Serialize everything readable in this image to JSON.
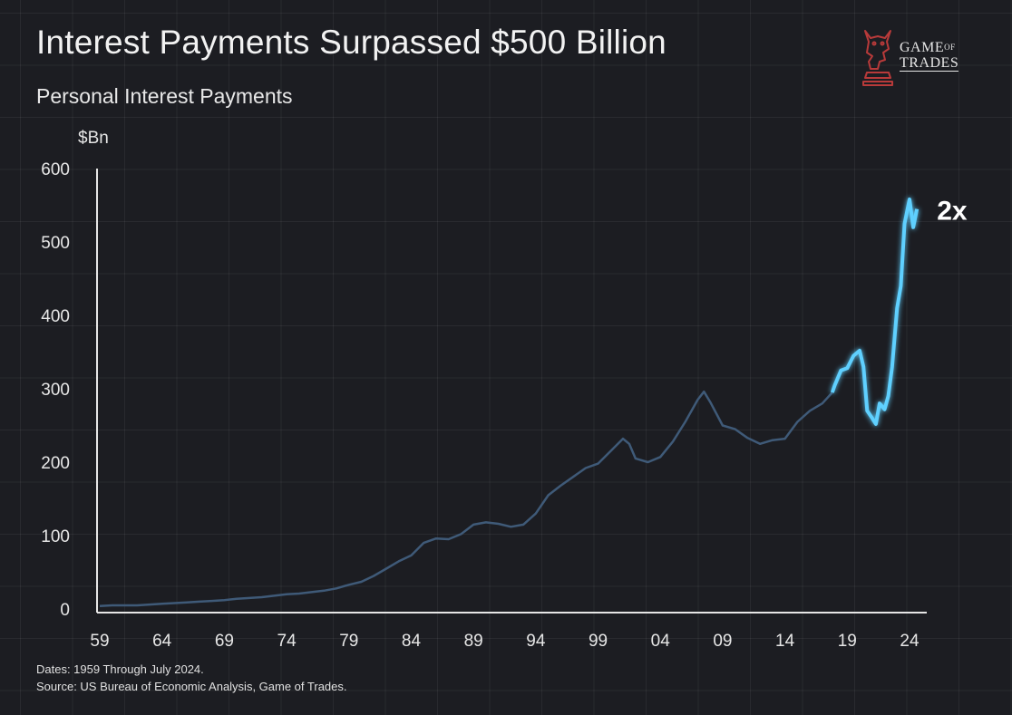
{
  "header": {
    "title": "Interest Payments Surpassed $500 Billion",
    "subtitle": "Personal Interest Payments"
  },
  "logo": {
    "line1": "GAME",
    "line1_small": "OF",
    "line2": "TRADES",
    "icon": "chess-knight-bull-icon"
  },
  "footer": {
    "dates": "Dates: 1959 Through July 2024.",
    "source": "Source: US Bureau of Economic Analysis, Game of Trades."
  },
  "colors": {
    "background": "#1c1d22",
    "line_early": "#3f5a78",
    "line_recent": "#5fd0ff",
    "logo_red": "#b83a3a"
  },
  "chart_data": {
    "type": "line",
    "title": "Personal Interest Payments",
    "ylabel": "$Bn",
    "xlabel": "",
    "xlim": [
      1959,
      2024.6
    ],
    "ylim": [
      0,
      600
    ],
    "grid": true,
    "x_tick_labels": [
      "59",
      "64",
      "69",
      "74",
      "79",
      "84",
      "89",
      "94",
      "99",
      "04",
      "09",
      "14",
      "19",
      "24"
    ],
    "x_tick_values": [
      1959,
      1964,
      1969,
      1974,
      1979,
      1984,
      1989,
      1994,
      1999,
      2004,
      2009,
      2014,
      2019,
      2024
    ],
    "y_ticks": [
      0,
      100,
      200,
      300,
      400,
      500,
      600
    ],
    "highlight_from": 2017.8,
    "annotation": {
      "text": "2x",
      "x": 2024.6,
      "y": 545
    },
    "series": [
      {
        "x": [
          1959,
          1960,
          1961,
          1962,
          1963,
          1964,
          1965,
          1966,
          1967,
          1968,
          1969,
          1970,
          1971,
          1972,
          1973,
          1974,
          1975,
          1976,
          1977,
          1978,
          1979,
          1980,
          1981,
          1982,
          1983,
          1984,
          1985,
          1986,
          1987,
          1988,
          1989,
          1990,
          1991,
          1992,
          1993,
          1994,
          1995,
          1996,
          1997,
          1998,
          1999,
          2000,
          2001,
          2001.5,
          2002,
          2003,
          2004,
          2005,
          2006,
          2007,
          2007.5,
          2008,
          2009,
          2010,
          2011,
          2012,
          2013,
          2014,
          2015,
          2016,
          2017,
          2017.8,
          2018,
          2018.5,
          2019,
          2019.5,
          2020,
          2020.3,
          2020.6,
          2021,
          2021.3,
          2021.6,
          2022,
          2022.3,
          2022.6,
          2023,
          2023.3,
          2023.6,
          2024,
          2024.3,
          2024.6
        ],
        "values": [
          4,
          5,
          5,
          5,
          6,
          7,
          8,
          9,
          10,
          11,
          12,
          14,
          15,
          16,
          18,
          20,
          21,
          23,
          25,
          28,
          33,
          37,
          45,
          55,
          65,
          73,
          90,
          96,
          95,
          102,
          115,
          118,
          116,
          112,
          115,
          130,
          155,
          168,
          180,
          192,
          198,
          215,
          232,
          225,
          205,
          200,
          207,
          228,
          255,
          285,
          296,
          282,
          250,
          245,
          233,
          225,
          230,
          232,
          255,
          270,
          280,
          295,
          305,
          325,
          328,
          345,
          352,
          330,
          270,
          260,
          252,
          280,
          272,
          290,
          330,
          410,
          440,
          525,
          558,
          520,
          545
        ]
      }
    ]
  }
}
